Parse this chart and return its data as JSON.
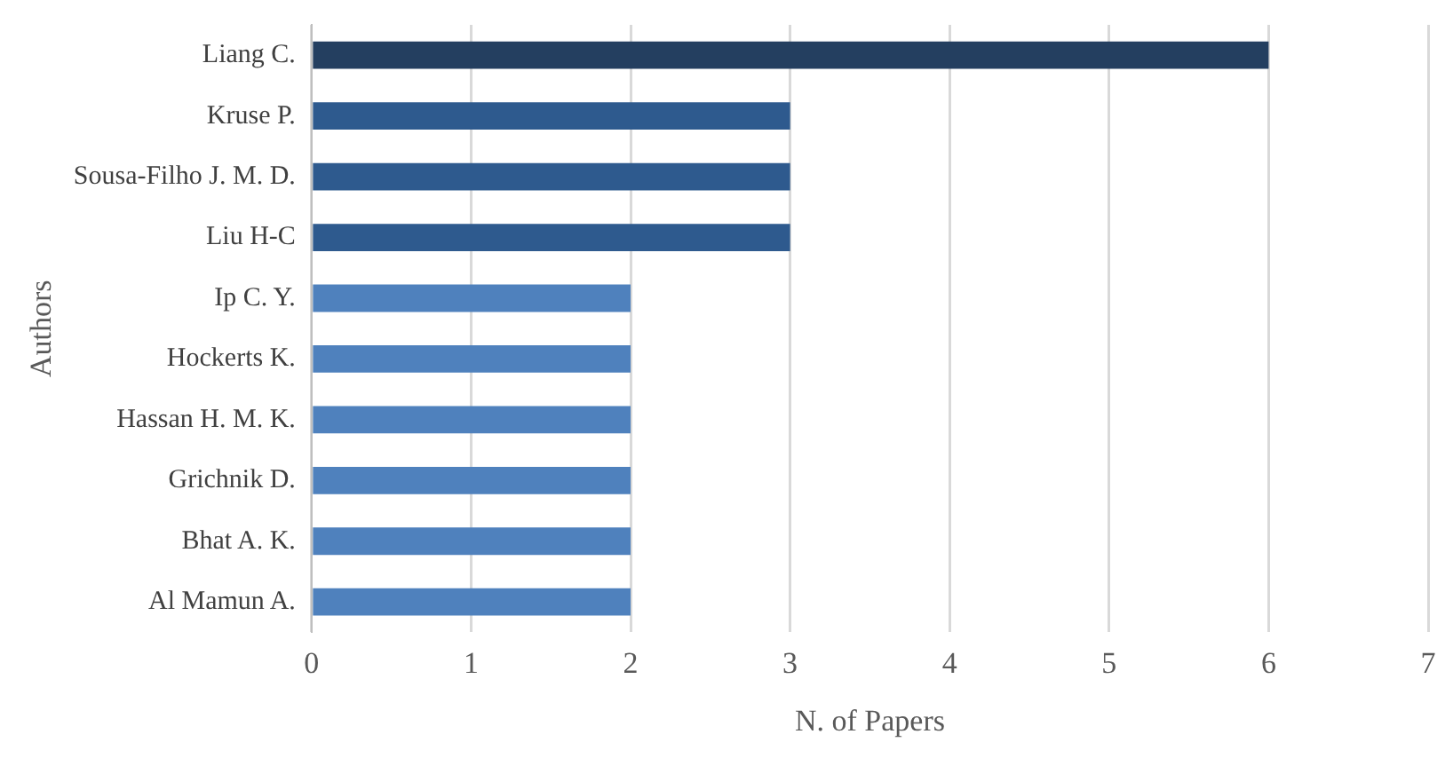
{
  "chart_data": {
    "type": "bar",
    "orientation": "horizontal",
    "xlabel": "N. of Papers",
    "ylabel": "Authors",
    "categories": [
      "Liang C.",
      "Kruse P.",
      "Sousa-Filho J. M. D.",
      "Liu H-C",
      "Ip C. Y.",
      "Hockerts K.",
      "Hassan H. M. K.",
      "Grichnik D.",
      "Bhat A. K.",
      "Al Mamun A."
    ],
    "values": [
      6,
      3,
      3,
      3,
      2,
      2,
      2,
      2,
      2,
      2
    ],
    "colors": [
      "#243f60",
      "#2e5a8e",
      "#2e5a8e",
      "#2e5a8e",
      "#4f81bd",
      "#4f81bd",
      "#4f81bd",
      "#4f81bd",
      "#4f81bd",
      "#4f81bd"
    ],
    "xlim": [
      0,
      7
    ],
    "xticks": [
      0,
      1,
      2,
      3,
      4,
      5,
      6,
      7
    ],
    "grid": "x",
    "legend": false
  }
}
